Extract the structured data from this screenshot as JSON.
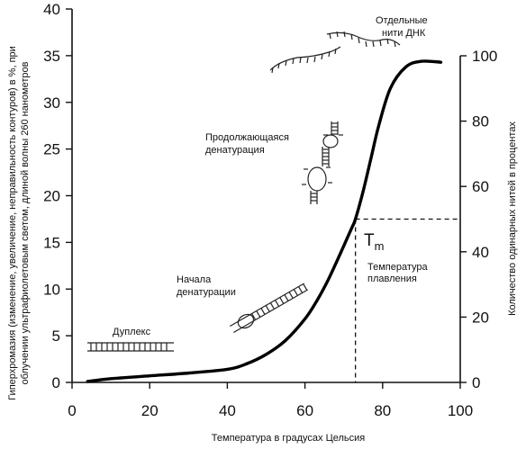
{
  "chart_data": {
    "type": "line",
    "xlabel": "Температура в градусах Цельсия",
    "ylabel_left_lines": [
      "Гиперхромазия (изменение, увеличение, неправильность контуров) в %, при",
      "облучении ультрафиолетовым светом, длиной волны 260 нанометров"
    ],
    "ylabel_right": "Количество одинарных нитей в процентах",
    "xlim": [
      0,
      100
    ],
    "ylim_left": [
      0,
      40
    ],
    "ylim_right": [
      0,
      100
    ],
    "x_ticks": [
      "0",
      "20",
      "40",
      "60",
      "80",
      "100"
    ],
    "y_ticks_left": [
      "0",
      "5",
      "10",
      "15",
      "20",
      "25",
      "30",
      "35",
      "40"
    ],
    "y_ticks_right": [
      "0",
      "20",
      "40",
      "60",
      "80",
      "100"
    ],
    "series": [
      {
        "x": [
          4,
          10,
          20,
          30,
          40,
          45,
          50,
          55,
          60,
          63,
          66,
          69,
          72,
          73,
          75,
          77,
          79,
          82,
          86,
          90,
          95
        ],
        "y": [
          0.1,
          0.4,
          0.7,
          1.0,
          1.4,
          2.0,
          3.0,
          4.5,
          6.8,
          8.7,
          11.0,
          13.7,
          16.5,
          17.5,
          20.5,
          24.0,
          27.5,
          31.5,
          33.8,
          34.4,
          34.3
        ]
      }
    ],
    "tm_marker": {
      "x": 73,
      "y_right": 50
    },
    "annotations": {
      "duplex": "Дуплекс",
      "start_line1": "Начала",
      "start_line2": "денатурации",
      "continuing_line1": "Продолжающаяся",
      "continuing_line2": "денатурация",
      "separate_line1": "Отдельные",
      "separate_line2": "нити ДНК",
      "tm_main": "T",
      "tm_sub": "m",
      "melting_line1": "Температура",
      "melting_line2": "плавления"
    }
  }
}
